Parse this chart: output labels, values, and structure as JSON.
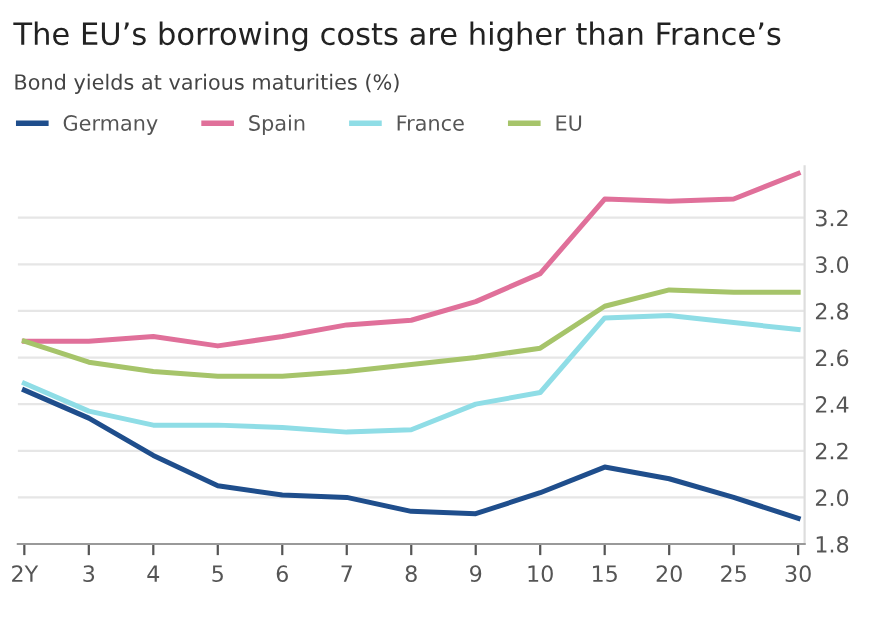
{
  "chart_data": {
    "type": "line",
    "title": "The EU’s borrowing costs are higher than France’s",
    "subtitle": "Bond yields at various maturities (%)",
    "categories": [
      "2Y",
      "3",
      "4",
      "5",
      "6",
      "7",
      "8",
      "9",
      "10",
      "15",
      "20",
      "25",
      "30"
    ],
    "series": [
      {
        "name": "Germany",
        "color": "#1f4e8c",
        "values": [
          2.46,
          2.34,
          2.18,
          2.05,
          2.01,
          2.0,
          1.94,
          1.93,
          2.02,
          2.13,
          2.08,
          2.0,
          1.91
        ]
      },
      {
        "name": "Spain",
        "color": "#e0709a",
        "values": [
          2.67,
          2.67,
          2.69,
          2.65,
          2.69,
          2.74,
          2.76,
          2.84,
          2.96,
          3.28,
          3.27,
          3.28,
          3.39
        ]
      },
      {
        "name": "France",
        "color": "#8fdde6",
        "values": [
          2.49,
          2.37,
          2.31,
          2.31,
          2.3,
          2.28,
          2.29,
          2.4,
          2.45,
          2.77,
          2.78,
          2.75,
          2.72
        ]
      },
      {
        "name": "EU",
        "color": "#a6c46a",
        "values": [
          2.67,
          2.58,
          2.54,
          2.52,
          2.52,
          2.54,
          2.57,
          2.6,
          2.64,
          2.82,
          2.89,
          2.88,
          2.88
        ]
      }
    ],
    "ylim": [
      1.8,
      3.42
    ],
    "yticks": [
      {
        "value": 1.8,
        "label": "1.8"
      },
      {
        "value": 2.0,
        "label": "2.0"
      },
      {
        "value": 2.2,
        "label": "2.2"
      },
      {
        "value": 2.4,
        "label": "2.4"
      },
      {
        "value": 2.6,
        "label": "2.6"
      },
      {
        "value": 2.8,
        "label": "2.8"
      },
      {
        "value": 3.0,
        "label": "3.0"
      },
      {
        "value": 3.2,
        "label": "3.2"
      }
    ],
    "grid": "y",
    "legend": "top left",
    "marker": "none",
    "line_style": "solid"
  }
}
